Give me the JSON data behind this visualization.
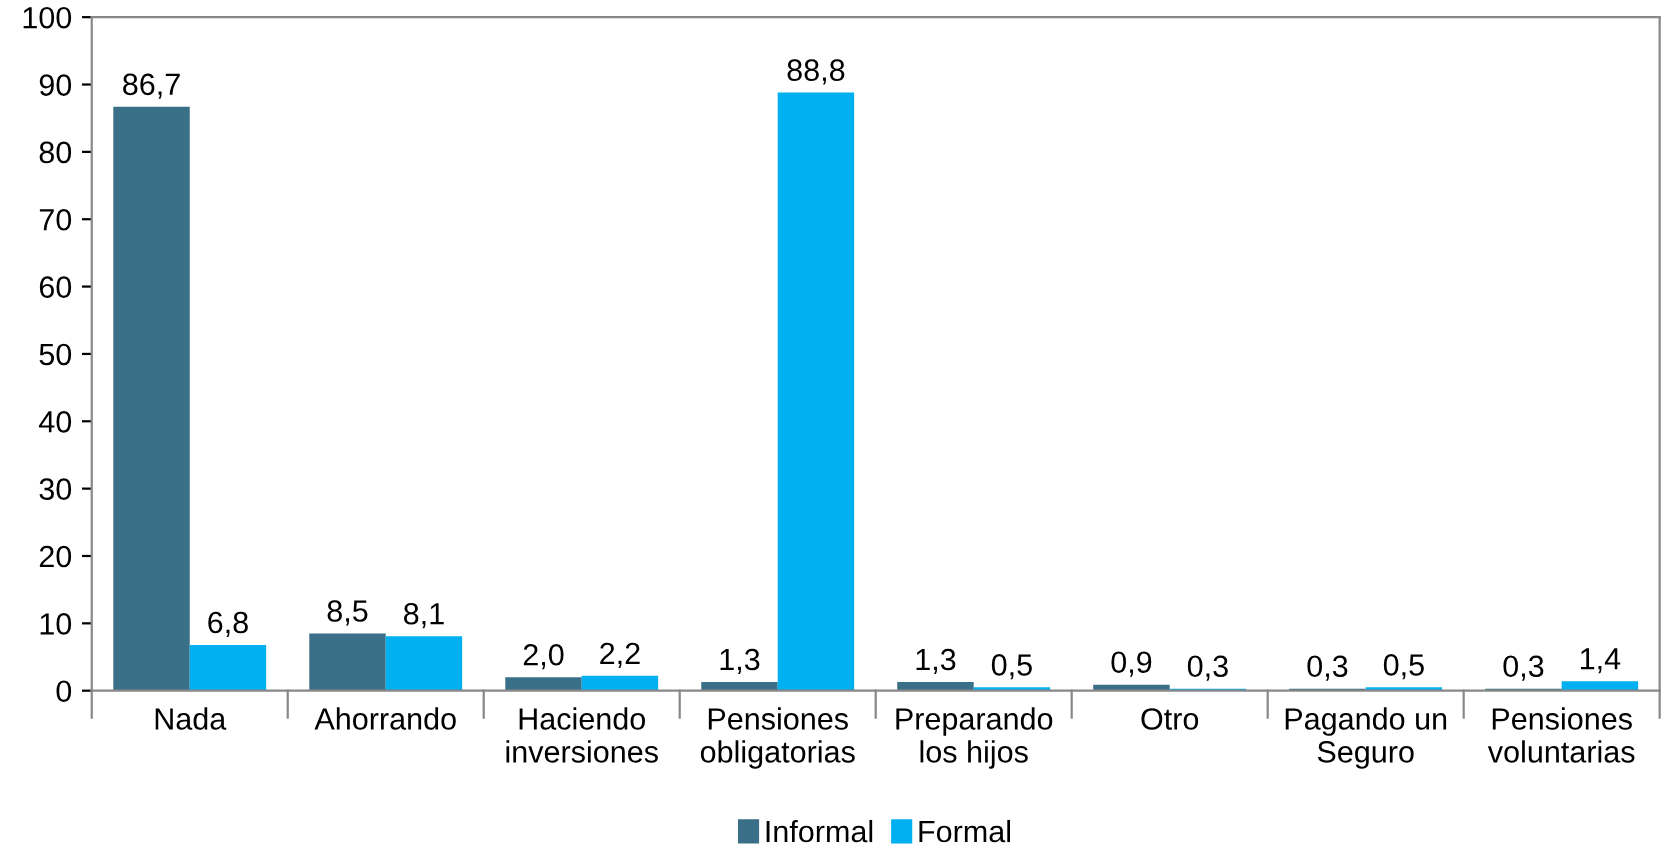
{
  "chart_data": {
    "type": "bar",
    "categories": [
      "Nada",
      "Ahorrando",
      "Haciendo\ninversiones",
      "Pensiones\nobligatorias",
      "Preparando\nlos hijos",
      "Otro",
      "Pagando un\nSeguro",
      "Pensiones\nvoluntarias"
    ],
    "series": [
      {
        "name": "Informal",
        "color": "#3a6f88",
        "values": [
          86.7,
          8.5,
          2.0,
          1.3,
          1.3,
          0.9,
          0.3,
          0.3
        ],
        "value_labels": [
          "86,7",
          "8,5",
          "2,0",
          "1,3",
          "1,3",
          "0,9",
          "0,3",
          "0,3"
        ]
      },
      {
        "name": "Formal",
        "color": "#00b0f0",
        "values": [
          6.8,
          8.1,
          2.2,
          88.8,
          0.5,
          0.3,
          0.5,
          1.4
        ],
        "value_labels": [
          "6,8",
          "8,1",
          "2,2",
          "88,8",
          "0,5",
          "0,3",
          "0,5",
          "1,4"
        ]
      }
    ],
    "ylim": [
      0,
      100
    ],
    "yticks": [
      0,
      10,
      20,
      30,
      40,
      50,
      60,
      70,
      80,
      90,
      100
    ],
    "grid": false,
    "legend": "bottom"
  }
}
